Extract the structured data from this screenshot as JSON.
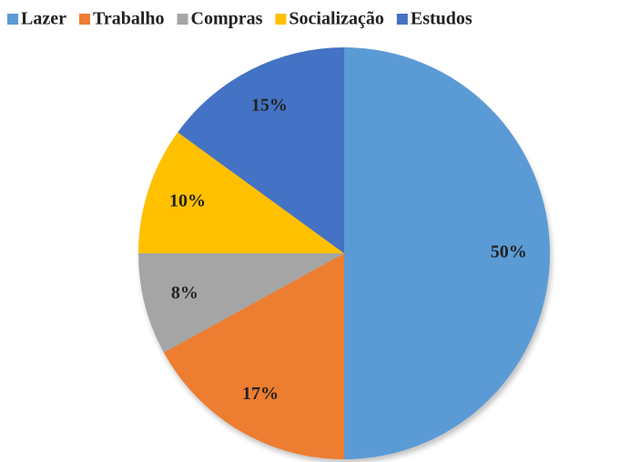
{
  "chart_data": {
    "type": "pie",
    "categories": [
      "Lazer",
      "Trabalho",
      "Compras",
      "Socialização",
      "Estudos"
    ],
    "values": [
      50,
      17,
      8,
      10,
      15
    ],
    "value_labels": [
      "50%",
      "17%",
      "8%",
      "10%",
      "15%"
    ],
    "colors": [
      "#5b9bd5",
      "#ed7d31",
      "#a5a5a5",
      "#ffc000",
      "#4472c4"
    ],
    "legend": "top"
  }
}
